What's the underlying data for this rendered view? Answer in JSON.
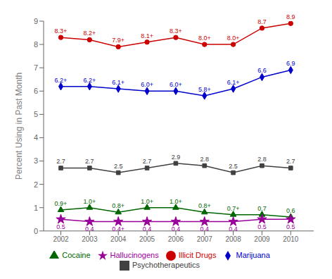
{
  "chart_data": {
    "type": "line",
    "x": [
      2002,
      2003,
      2004,
      2005,
      2006,
      2007,
      2008,
      2009,
      2010
    ],
    "xlim": [
      2001.4,
      2010.8
    ],
    "xticks": [
      2002,
      2003,
      2004,
      2005,
      2006,
      2007,
      2008,
      2009,
      2010
    ],
    "ylabel": "Percent Using in Past Month",
    "ylim": [
      0,
      9
    ],
    "yticks": [
      0,
      1,
      2,
      3,
      4,
      5,
      6,
      7,
      8,
      9
    ],
    "grid": false,
    "legend": "bottom",
    "data_labels": true,
    "series": [
      {
        "name": "Illicit Drugs",
        "color": "#cc0000",
        "marker": "circle",
        "values": [
          8.3,
          8.2,
          7.9,
          8.1,
          8.3,
          8.0,
          8.0,
          8.7,
          8.9
        ],
        "value_labels": [
          "8.3+",
          "8.2+",
          "7.9+",
          "8.1+",
          "8.3+",
          "8.0+",
          "8.0+",
          "8.7",
          "8.9"
        ]
      },
      {
        "name": "Marijuana",
        "color": "#0000cc",
        "marker": "diamond",
        "values": [
          6.2,
          6.2,
          6.1,
          6.0,
          6.0,
          5.8,
          6.1,
          6.6,
          6.9
        ],
        "value_labels": [
          "6.2+",
          "6.2+",
          "6.1+",
          "6.0+",
          "6.0+",
          "5.8+",
          "6.1+",
          "6.6",
          "6.9"
        ]
      },
      {
        "name": "Psychotherapeutics",
        "color": "#404040",
        "marker": "square",
        "values": [
          2.7,
          2.7,
          2.5,
          2.7,
          2.9,
          2.8,
          2.5,
          2.8,
          2.7
        ],
        "value_labels": [
          "2.7",
          "2.7",
          "2.5",
          "2.7",
          "2.9",
          "2.8",
          "2.5",
          "2.8",
          "2.7"
        ]
      },
      {
        "name": "Cocaine",
        "color": "#006600",
        "marker": "triangle",
        "values": [
          0.9,
          1.0,
          0.8,
          1.0,
          1.0,
          0.8,
          0.7,
          0.7,
          0.6
        ],
        "value_labels": [
          "0.9+",
          "1.0+",
          "0.8+",
          "1.0+",
          "1.0+",
          "0.8+",
          "0.7+",
          "0.7",
          "0.6"
        ]
      },
      {
        "name": "Hallucinogens",
        "color": "#990099",
        "marker": "star",
        "values": [
          0.5,
          0.4,
          0.4,
          0.4,
          0.4,
          0.4,
          0.4,
          0.5,
          0.5
        ],
        "value_labels": [
          "0.5",
          "0.4",
          "0.4+",
          "0.4",
          "0.4",
          "0.4",
          "0.4",
          "0.5",
          "0.5"
        ]
      }
    ]
  }
}
